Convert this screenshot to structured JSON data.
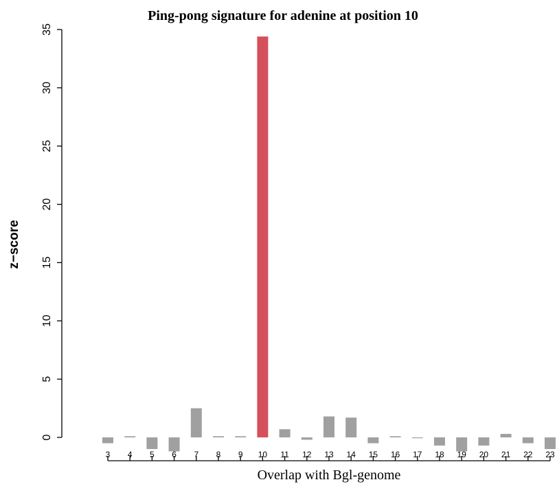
{
  "chart_data": {
    "type": "bar",
    "title": "Ping-pong signature for adenine at position 10",
    "xlabel": "Overlap with Bgl-genome",
    "ylabel": "z−score",
    "categories": [
      "3",
      "4",
      "5",
      "6",
      "7",
      "8",
      "9",
      "10",
      "11",
      "12",
      "13",
      "14",
      "15",
      "16",
      "17",
      "18",
      "19",
      "20",
      "21",
      "22",
      "23"
    ],
    "values": [
      -0.5,
      0.1,
      -1.0,
      -1.2,
      2.5,
      0.1,
      0.1,
      34.4,
      0.7,
      -0.2,
      1.8,
      1.7,
      -0.5,
      0.1,
      -0.05,
      -0.7,
      -1.2,
      -0.7,
      0.3,
      -0.5,
      -1.0
    ],
    "ylim": [
      0,
      35
    ],
    "yticks": [
      "0",
      "5",
      "10",
      "15",
      "20",
      "25",
      "30",
      "35"
    ],
    "highlight_category": "10",
    "colors": {
      "bar": "#a0a0a0",
      "highlight": "#d4505a"
    },
    "grid": false,
    "legend": "none"
  }
}
